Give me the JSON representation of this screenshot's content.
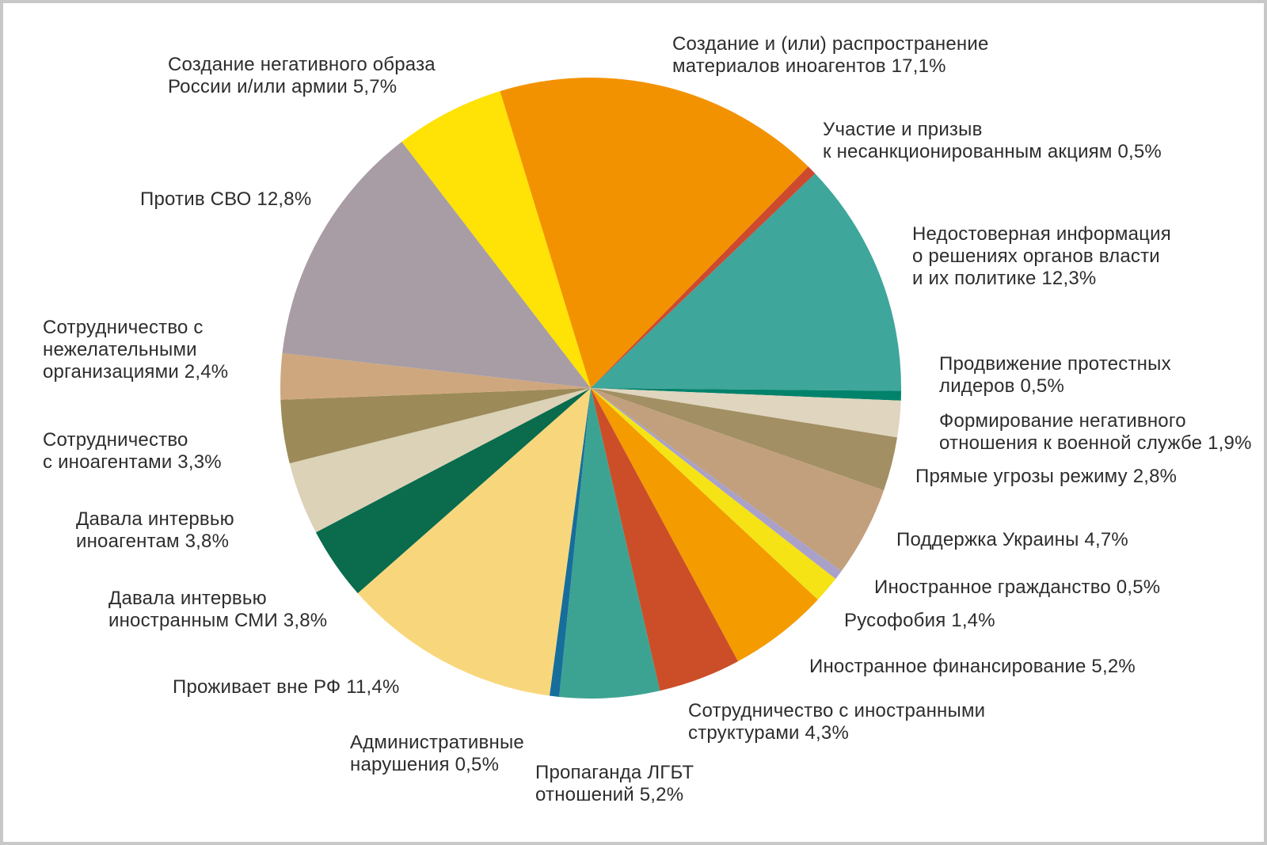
{
  "frame": {
    "background": "#ffffff",
    "border_color": "#c8c8c8",
    "text_color": "#2d2d2d"
  },
  "chart_data": {
    "type": "pie",
    "title": "",
    "unit": "%",
    "decimal_separator": ",",
    "start_angle_deg": -17,
    "direction": "clockwise",
    "legend_position": "labels-around-pie",
    "slices": [
      {
        "label": "Создание и (или) распространение материалов иноагентов",
        "value": 17.1,
        "display": "Создание и (или) распространение\nматериалов иноагентов 17,1%",
        "color": "#F39200"
      },
      {
        "label": "Участие и призыв к несанкционированным акциям",
        "value": 0.5,
        "display": "Участие и призыв\nк несанкционированным акциям 0,5%",
        "color": "#CD4A2E"
      },
      {
        "label": "Недостоверная информация о решениях органов власти и их политике",
        "value": 12.3,
        "display": "Недостоверная информация\nо решениях органов власти\nи их политике 12,3%",
        "color": "#3EA69B"
      },
      {
        "label": "Продвижение протестных лидеров",
        "value": 0.5,
        "display": "Продвижение протестных\nлидеров 0,5%",
        "color": "#00826B"
      },
      {
        "label": "Формирование негативного отношения к военной службе",
        "value": 1.9,
        "display": "Формирование негативного\nотношения к военной службе 1,9%",
        "color": "#E0D5BE"
      },
      {
        "label": "Прямые угрозы режиму",
        "value": 2.8,
        "display": "Прямые угрозы режиму 2,8%",
        "color": "#A28F63"
      },
      {
        "label": "Поддержка Украины",
        "value": 4.7,
        "display": "Поддержка Украины 4,7%",
        "color": "#C2A07D"
      },
      {
        "label": "Иностранное гражданство",
        "value": 0.5,
        "display": "Иностранное гражданство 0,5%",
        "color": "#A9A1C9"
      },
      {
        "label": "Русофобия",
        "value": 1.4,
        "display": "Русофобия 1,4%",
        "color": "#F5E316"
      },
      {
        "label": "Иностранное финансирование",
        "value": 5.2,
        "display": "Иностранное финансирование 5,2%",
        "color": "#F49B00"
      },
      {
        "label": "Сотрудничество с иностранными структурами",
        "value": 4.3,
        "display": "Сотрудничество с иностранными\nструктурами 4,3%",
        "color": "#CB4E28"
      },
      {
        "label": "Пропаганда ЛГБТ отношений",
        "value": 5.2,
        "display": "Пропаганда ЛГБТ\nотношений 5,2%",
        "color": "#3CA392"
      },
      {
        "label": "Административные нарушения",
        "value": 0.5,
        "display": "Административные\nнарушения 0,5%",
        "color": "#176E9B"
      },
      {
        "label": "Проживает вне РФ",
        "value": 11.4,
        "display": "Проживает вне РФ 11,4%",
        "color": "#F8D77C"
      },
      {
        "label": "Давала интервью иностранным СМИ",
        "value": 3.8,
        "display": "Давала интервью\nиностранным СМИ 3,8%",
        "color": "#0A6B4D"
      },
      {
        "label": "Давала интервью иноагентам",
        "value": 3.8,
        "display": "Давала интервью\nиноагентам 3,8%",
        "color": "#DCD2B7"
      },
      {
        "label": "Сотрудничество с иноагентами",
        "value": 3.3,
        "display": "Сотрудничество\nс иноагентами 3,3%",
        "color": "#9C8B58"
      },
      {
        "label": "Сотрудничество с нежелательными организациями",
        "value": 2.4,
        "display": "Сотрудничество с\nнежелательными\nорганизациями 2,4%",
        "color": "#CFA77E"
      },
      {
        "label": "Против СВО",
        "value": 12.8,
        "display": "Против СВО 12,8%",
        "color": "#A89DA4"
      },
      {
        "label": "Создание негативного образа России и/или армии",
        "value": 5.7,
        "display": "Создание негативного образа\nРоссии и/или армии 5,7%",
        "color": "#FFE206"
      }
    ]
  }
}
